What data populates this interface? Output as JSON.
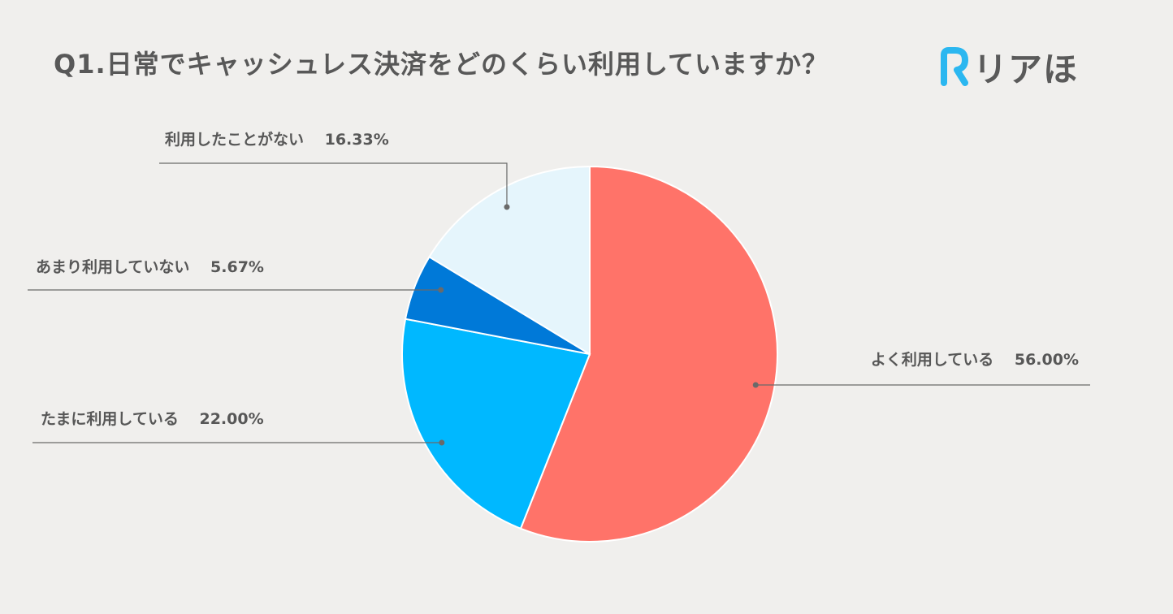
{
  "title": "Q1.日常でキャッシュレス決済をどのくらい利用していますか？",
  "logo": {
    "text": "リアほ",
    "mark_letter": "R",
    "mark_color": "#2bb7f0"
  },
  "colors": {
    "background": "#f0efed",
    "leader_line": "#6a6a6a"
  },
  "chart_data": {
    "type": "pie",
    "title": "Q1.日常でキャッシュレス決済をどのくらい利用していますか？",
    "start": "12 o'clock, clockwise",
    "slices": [
      {
        "label": "よく利用している",
        "value": 56.0,
        "value_text": "56.00%",
        "color": "#ff7369"
      },
      {
        "label": "たまに利用している",
        "value": 22.0,
        "value_text": "22.00%",
        "color": "#00b8ff"
      },
      {
        "label": "あまり利用していない",
        "value": 5.67,
        "value_text": "5.67%",
        "color": "#0079d8"
      },
      {
        "label": "利用したことがない",
        "value": 16.33,
        "value_text": "16.33%",
        "color": "#e5f5fc"
      }
    ],
    "legend": "none (callout labels with leader lines)"
  }
}
